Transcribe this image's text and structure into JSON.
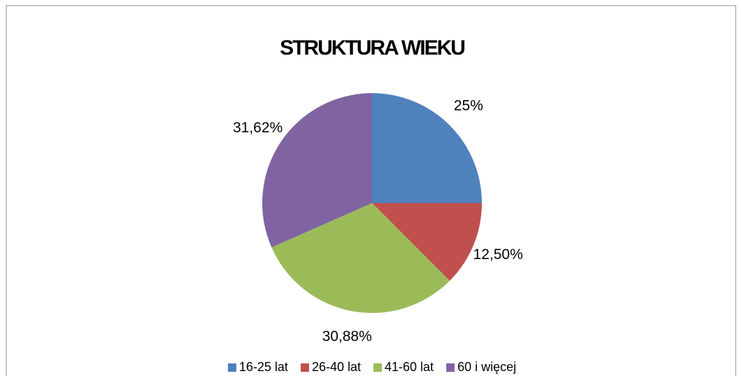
{
  "chart_data": {
    "type": "pie",
    "title": "STRUKTURA WIEKU",
    "categories": [
      "16-25 lat",
      "26-40 lat",
      "41-60 lat",
      "60 i więcej"
    ],
    "values": [
      25,
      12.5,
      30.88,
      31.62
    ],
    "value_labels": [
      "25%",
      "12,50%",
      "30,88%",
      "31,62%"
    ],
    "colors": [
      "#4f81bd",
      "#c0504d",
      "#9bbb59",
      "#8064a2"
    ],
    "legend": "bottom"
  }
}
